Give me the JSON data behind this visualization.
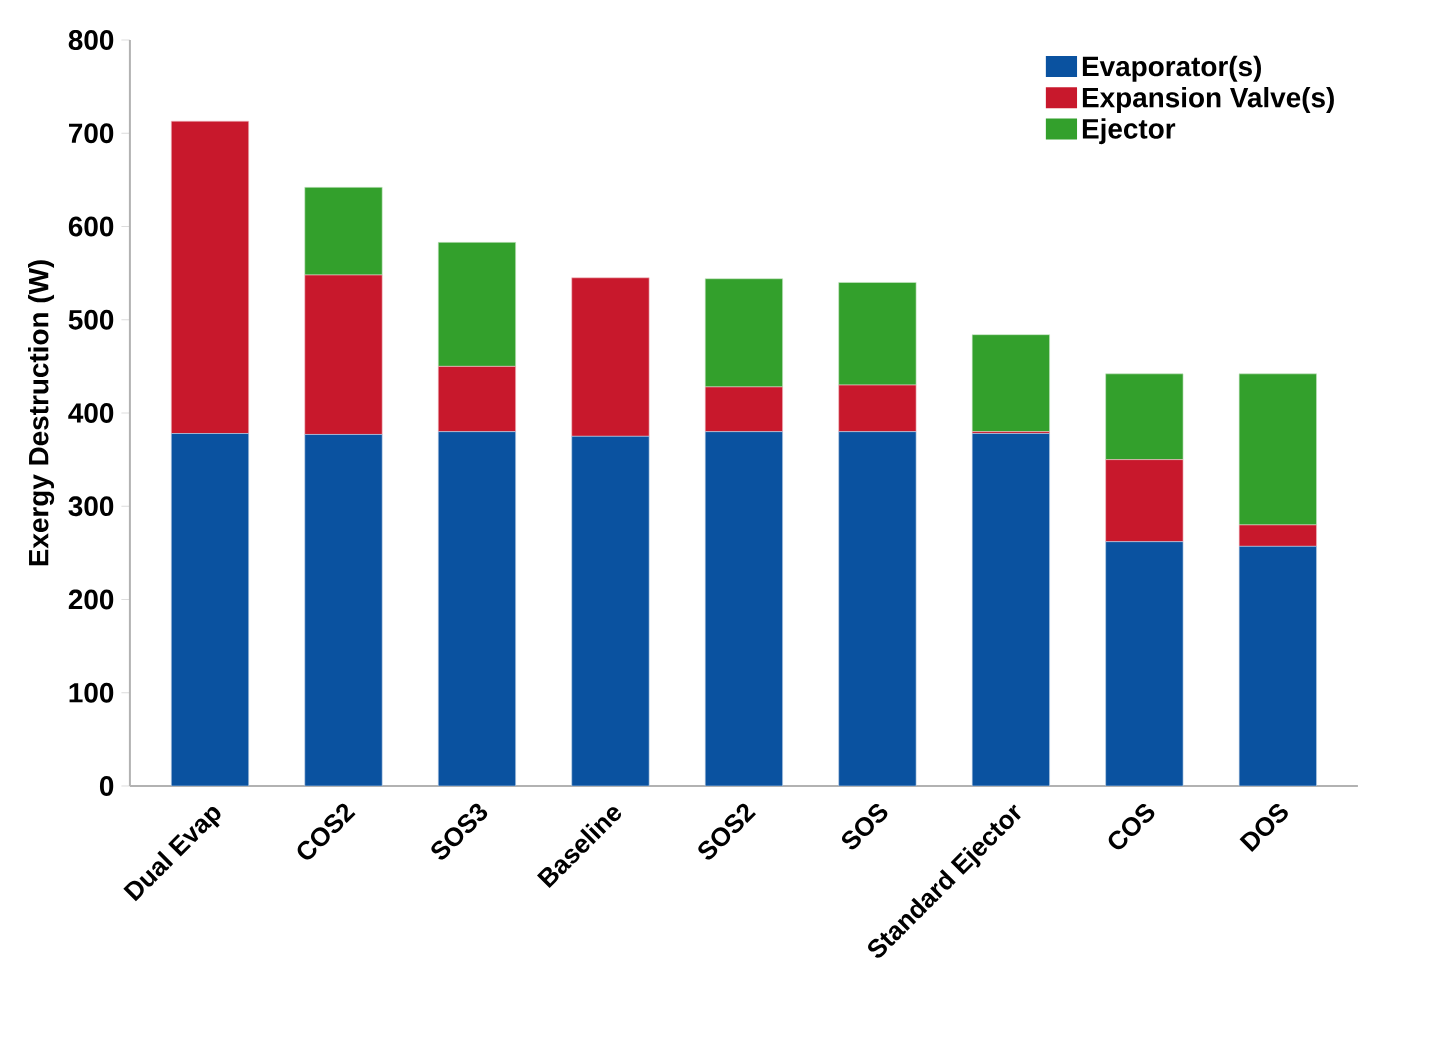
{
  "chart_data": {
    "type": "bar",
    "stacked": true,
    "ylabel": "Exergy Destruction (W)",
    "categories": [
      "Dual Evap",
      "COS2",
      "SOS3",
      "Baseline",
      "SOS2",
      "SOS",
      "Standard Ejector",
      "COS",
      "DOS"
    ],
    "series": [
      {
        "name": "Evaporator(s)",
        "color": "#0a52a0",
        "values": [
          378,
          377,
          380,
          375,
          380,
          380,
          378,
          262,
          257
        ]
      },
      {
        "name": "Expansion Valve(s)",
        "color": "#c8182c",
        "values": [
          335,
          171,
          70,
          170,
          48,
          50,
          2,
          88,
          23
        ]
      },
      {
        "name": "Ejector",
        "color": "#33a02c",
        "values": [
          0,
          94,
          133,
          0,
          116,
          110,
          104,
          92,
          162
        ]
      }
    ],
    "ylim": [
      0,
      800
    ],
    "yticks": [
      0,
      100,
      200,
      300,
      400,
      500,
      600,
      700,
      800
    ],
    "grid": false,
    "legend": "top right"
  }
}
